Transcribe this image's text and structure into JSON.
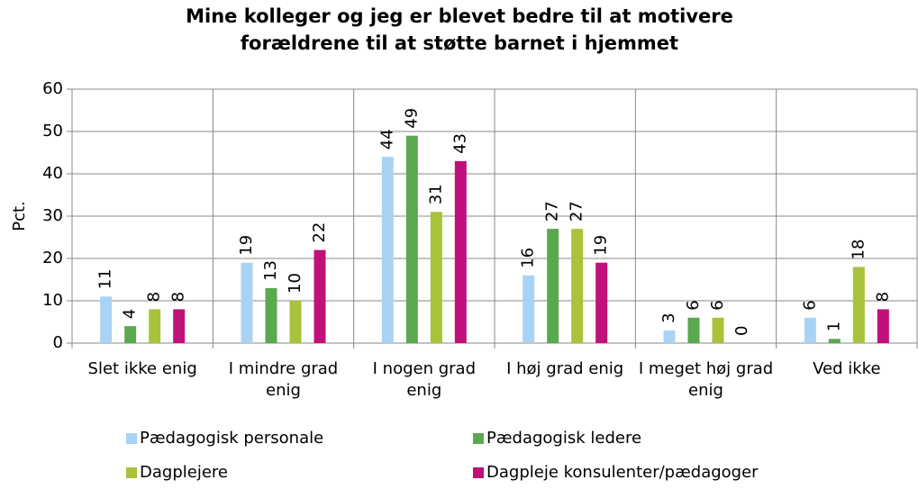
{
  "chart_data": {
    "type": "bar",
    "title": [
      "Mine kolleger og jeg er blevet bedre til at motivere",
      "forældrene til at støtte barnet i hjemmet"
    ],
    "y_label": "Pct.",
    "categories": [
      "Slet ikke enig",
      "I mindre grad enig",
      "I nogen grad enig",
      "I høj grad enig",
      "I meget høj grad enig",
      "Ved ikke"
    ],
    "series": [
      {
        "name": "Pædagogisk personale",
        "color": "#a9d3f5",
        "values": [
          11,
          19,
          44,
          16,
          3,
          6
        ]
      },
      {
        "name": "Pædagogisk ledere",
        "color": "#5aa84f",
        "values": [
          4,
          13,
          49,
          27,
          6,
          1
        ]
      },
      {
        "name": "Dagplejere",
        "color": "#a8c23a",
        "values": [
          8,
          10,
          31,
          27,
          6,
          18
        ]
      },
      {
        "name": "Dagpleje konsulenter/pædagoger",
        "color": "#c0117a",
        "values": [
          8,
          22,
          43,
          19,
          0,
          8
        ]
      }
    ],
    "ylim": [
      0,
      60
    ],
    "yticks": [
      0,
      10,
      20,
      30,
      40,
      50,
      60
    ],
    "grid": true
  }
}
